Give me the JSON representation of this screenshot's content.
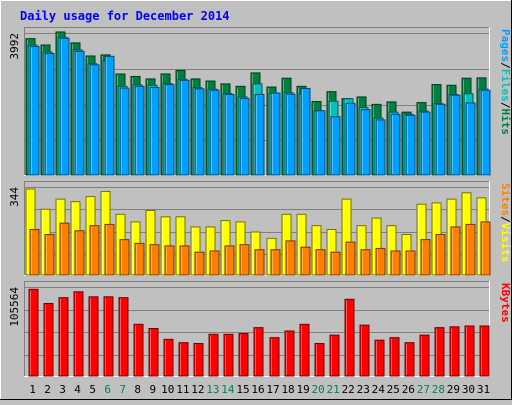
{
  "title": "Daily usage for December 2014",
  "chart_data": [
    {
      "type": "bar",
      "title": "Daily usage for December 2014",
      "categories": [
        "1",
        "2",
        "3",
        "4",
        "5",
        "6",
        "7",
        "8",
        "9",
        "10",
        "11",
        "12",
        "13",
        "14",
        "15",
        "16",
        "17",
        "18",
        "19",
        "20",
        "21",
        "22",
        "23",
        "24",
        "25",
        "26",
        "27",
        "28",
        "29",
        "30",
        "31"
      ],
      "weekend_days": [
        "6",
        "7",
        "13",
        "14",
        "20",
        "21",
        "27",
        "28"
      ],
      "ylim": [
        0,
        3992
      ],
      "ytick_label": "3992",
      "series": [
        {
          "name": "Hits",
          "color": "#008040",
          "values": [
            3860,
            3680,
            4050,
            3740,
            3370,
            3400,
            2860,
            2790,
            2720,
            2860,
            2960,
            2720,
            2660,
            2580,
            2510,
            2890,
            2490,
            2740,
            2510,
            2080,
            2360,
            2160,
            2210,
            2000,
            2070,
            1780,
            2050,
            2560,
            2540,
            2740,
            2750
          ]
        },
        {
          "name": "Files",
          "color": "#00c0c0",
          "values": [
            3680,
            3480,
            3900,
            3540,
            3150,
            3230,
            2510,
            2550,
            2540,
            2590,
            2710,
            2470,
            2430,
            2310,
            2210,
            2580,
            2310,
            2330,
            2300,
            1820,
            2090,
            2160,
            1910,
            1610,
            1780,
            1720,
            1810,
            2020,
            2280,
            2300,
            2430
          ]
        },
        {
          "name": "Pages",
          "color": "#00a0ff",
          "values": [
            3640,
            3440,
            3870,
            3500,
            3120,
            3360,
            2460,
            2510,
            2480,
            2560,
            2680,
            2440,
            2400,
            2280,
            2170,
            2280,
            2320,
            2290,
            2450,
            1820,
            1650,
            2030,
            1850,
            1560,
            1720,
            1690,
            1780,
            2000,
            2260,
            2040,
            2400
          ]
        }
      ],
      "axis_label_parts": [
        "Pages",
        "/",
        "Files",
        "/",
        "Hits"
      ]
    },
    {
      "type": "bar",
      "categories": [
        "1",
        "2",
        "3",
        "4",
        "5",
        "6",
        "7",
        "8",
        "9",
        "10",
        "11",
        "12",
        "13",
        "14",
        "15",
        "16",
        "17",
        "18",
        "19",
        "20",
        "21",
        "22",
        "23",
        "24",
        "25",
        "26",
        "27",
        "28",
        "29",
        "30",
        "31"
      ],
      "ylim": [
        0,
        344
      ],
      "ytick_label": "344",
      "series": [
        {
          "name": "Visits",
          "color": "#ffff00",
          "values": [
            340,
            260,
            300,
            290,
            310,
            330,
            240,
            210,
            255,
            230,
            230,
            190,
            190,
            215,
            210,
            170,
            145,
            240,
            240,
            195,
            180,
            300,
            195,
            225,
            195,
            160,
            280,
            285,
            300,
            325,
            305
          ]
        },
        {
          "name": "Sites",
          "color": "#ff8000",
          "values": [
            180,
            160,
            205,
            175,
            195,
            200,
            140,
            125,
            120,
            115,
            115,
            90,
            95,
            115,
            120,
            100,
            100,
            135,
            110,
            100,
            90,
            130,
            100,
            105,
            95,
            95,
            140,
            160,
            190,
            200,
            210
          ]
        }
      ],
      "axis_label_parts": [
        "Sites",
        "/",
        "Visits"
      ]
    },
    {
      "type": "bar",
      "categories": [
        "1",
        "2",
        "3",
        "4",
        "5",
        "6",
        "7",
        "8",
        "9",
        "10",
        "11",
        "12",
        "13",
        "14",
        "15",
        "16",
        "17",
        "18",
        "19",
        "20",
        "21",
        "22",
        "23",
        "24",
        "25",
        "26",
        "27",
        "28",
        "29",
        "30",
        "31"
      ],
      "ylim": [
        0,
        105564
      ],
      "ytick_label": "105564",
      "series": [
        {
          "name": "KBytes",
          "color": "#ff0000",
          "values": [
            104000,
            87000,
            94000,
            101000,
            95000,
            95000,
            94000,
            62000,
            57000,
            44000,
            40000,
            39000,
            50000,
            50000,
            51000,
            58000,
            46000,
            54000,
            62000,
            39000,
            49000,
            92000,
            61000,
            43000,
            46000,
            40000,
            49000,
            58000,
            59000,
            60000,
            60000
          ]
        }
      ],
      "axis_label_parts": [
        "KBytes"
      ]
    }
  ],
  "colors": {
    "background": "#c0c0c0",
    "plot_background": "#c0c0c0",
    "title_text": "#0000ff",
    "weekday_label": "#000000",
    "weekend_label": "#00805c",
    "grid": "#808080"
  }
}
